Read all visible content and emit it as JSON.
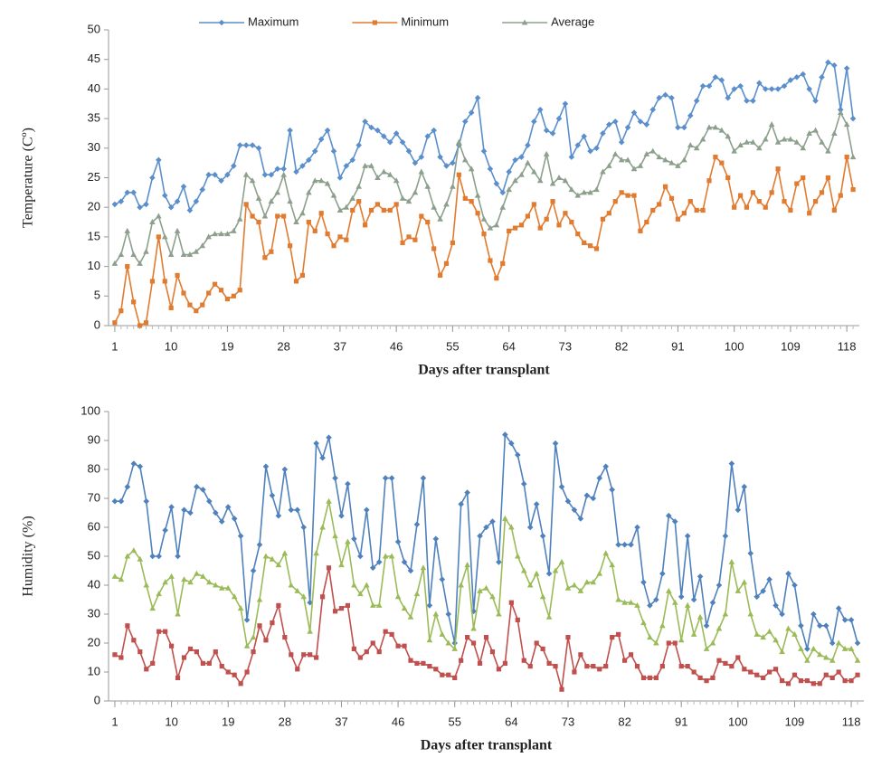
{
  "chart_data": [
    {
      "type": "line",
      "ylabel": "Temperature (Cº)",
      "xlabel": "Days after transplant",
      "legend": "top",
      "xlim": [
        0,
        120
      ],
      "xticks": [
        1,
        10,
        19,
        28,
        37,
        46,
        55,
        64,
        73,
        82,
        91,
        100,
        109,
        118
      ],
      "ylim": [
        0,
        50
      ],
      "yticks": [
        0,
        5,
        10,
        15,
        20,
        25,
        30,
        35,
        40,
        45,
        50
      ],
      "x": [
        1,
        2,
        3,
        4,
        5,
        6,
        7,
        8,
        9,
        10,
        11,
        12,
        13,
        14,
        15,
        16,
        17,
        18,
        19,
        20,
        21,
        22,
        23,
        24,
        25,
        26,
        27,
        28,
        29,
        30,
        31,
        32,
        33,
        34,
        35,
        36,
        37,
        38,
        39,
        40,
        41,
        42,
        43,
        44,
        45,
        46,
        47,
        48,
        49,
        50,
        51,
        52,
        53,
        54,
        55,
        56,
        57,
        58,
        59,
        60,
        61,
        62,
        63,
        64,
        65,
        66,
        67,
        68,
        69,
        70,
        71,
        72,
        73,
        74,
        75,
        76,
        77,
        78,
        79,
        80,
        81,
        82,
        83,
        84,
        85,
        86,
        87,
        88,
        89,
        90,
        91,
        92,
        93,
        94,
        95,
        96,
        97,
        98,
        99,
        100,
        101,
        102,
        103,
        104,
        105,
        106,
        107,
        108,
        109,
        110,
        111,
        112,
        113,
        114,
        115,
        116,
        117,
        118,
        119
      ],
      "series": [
        {
          "name": "Maximum",
          "color": "#5b8fcc",
          "marker": "diamond",
          "values": [
            20.5,
            21,
            22.5,
            22.5,
            20,
            20.5,
            25,
            28,
            22,
            20,
            21,
            23.5,
            19.5,
            21,
            23,
            25.5,
            25.5,
            24.5,
            25.5,
            27,
            30.5,
            30.5,
            30.5,
            30,
            25.5,
            25.5,
            26.5,
            26.5,
            33,
            26,
            27,
            28,
            29.5,
            31.5,
            33,
            29.5,
            25,
            27,
            28,
            30.5,
            34.5,
            33.5,
            33,
            32,
            31,
            32.5,
            31,
            29.5,
            27.5,
            28.5,
            32,
            33,
            28.5,
            27,
            27.5,
            30.5,
            34.5,
            36,
            38.5,
            29.5,
            26.5,
            24,
            22.5,
            26,
            28,
            28.5,
            30.5,
            34.5,
            36.5,
            33,
            32.5,
            35,
            37.5,
            28.5,
            30.5,
            32,
            29.5,
            30,
            32.5,
            34,
            34.5,
            31,
            33.5,
            36,
            34.5,
            34,
            36.5,
            38.5,
            39,
            38.5,
            33.5,
            33.5,
            35.5,
            38,
            40.5,
            40.5,
            42,
            41.5,
            38.5,
            40,
            40.5,
            38,
            38,
            41,
            40,
            40,
            40,
            40.5,
            41.5,
            42,
            42.5,
            40,
            38,
            42,
            44.5,
            44,
            36.5,
            43.5,
            35
          ]
        },
        {
          "name": "Minimum",
          "color": "#e07b30",
          "marker": "square",
          "values": [
            0.5,
            2.5,
            10,
            4,
            0,
            0.5,
            7.5,
            15,
            7.5,
            3,
            8.5,
            5.5,
            3.5,
            2.5,
            3.5,
            5.5,
            7,
            6,
            4.5,
            5,
            6,
            20.5,
            18.5,
            17.5,
            11.5,
            12.5,
            18.5,
            18.5,
            13.5,
            7.5,
            8.5,
            17.5,
            16,
            19,
            15.5,
            13.5,
            15,
            14.5,
            19.5,
            21,
            17,
            19.5,
            20.5,
            19.5,
            19.5,
            20.5,
            14,
            15,
            14.5,
            18.5,
            17.5,
            13,
            8.5,
            10.5,
            14,
            25.5,
            21.5,
            21,
            19,
            15.5,
            11,
            8,
            10.5,
            16,
            16.5,
            17,
            18.5,
            20.5,
            16.5,
            18,
            21,
            17,
            19,
            17.5,
            15.5,
            14,
            13.5,
            13,
            18,
            19,
            21,
            22.5,
            22,
            22,
            16,
            17.5,
            19.5,
            20.5,
            23.5,
            21.5,
            18,
            19,
            21,
            19.5,
            19.5,
            24.5,
            28.5,
            27.5,
            25,
            20,
            22,
            20,
            22.5,
            21,
            20,
            22.5,
            26.5,
            21,
            19.5,
            24,
            25,
            19,
            21,
            22.5,
            25,
            19.5,
            22,
            28.5,
            23
          ]
        },
        {
          "name": "Average",
          "color": "#8da08d",
          "marker": "triangle",
          "values": [
            10.5,
            12,
            16,
            12,
            10.5,
            12.5,
            17.5,
            18.5,
            15,
            12,
            16,
            12,
            12,
            12.5,
            13.5,
            15,
            15.5,
            15.5,
            15.5,
            16,
            18,
            25.5,
            24.5,
            21.5,
            18.5,
            21,
            22.5,
            25.5,
            21,
            17.5,
            19,
            22.5,
            24.5,
            24.5,
            24,
            22,
            19.5,
            20,
            21.5,
            23.5,
            27,
            27,
            25,
            26,
            25.5,
            24.5,
            21.5,
            21,
            22.5,
            26,
            23.5,
            20,
            18,
            20.5,
            23.5,
            31,
            28,
            26.5,
            22,
            18,
            16.5,
            17,
            20,
            23,
            24.5,
            25.5,
            27.5,
            26,
            24.5,
            29,
            24,
            25,
            24.5,
            23,
            22,
            22.5,
            22.5,
            23,
            26,
            27,
            29,
            28,
            28,
            26.5,
            27,
            29,
            29.5,
            28.5,
            28,
            27.5,
            27,
            28,
            30.5,
            30,
            31.5,
            33.5,
            33.5,
            33,
            32,
            29.5,
            30.5,
            31,
            31,
            30,
            31.5,
            34,
            31,
            31.5,
            31.5,
            31,
            30,
            32.5,
            33,
            31,
            29.5,
            32.5,
            36,
            34,
            28.5
          ]
        }
      ]
    },
    {
      "type": "line",
      "ylabel": "Humidity (%)",
      "xlabel": "Days after transplant",
      "xlim": [
        0,
        120
      ],
      "xticks": [
        1,
        10,
        19,
        28,
        37,
        46,
        55,
        64,
        73,
        82,
        91,
        100,
        109,
        118
      ],
      "ylim": [
        0,
        100
      ],
      "yticks": [
        0,
        10,
        20,
        30,
        40,
        50,
        60,
        70,
        80,
        90,
        100
      ],
      "x": [
        1,
        2,
        3,
        4,
        5,
        6,
        7,
        8,
        9,
        10,
        11,
        12,
        13,
        14,
        15,
        16,
        17,
        18,
        19,
        20,
        21,
        22,
        23,
        24,
        25,
        26,
        27,
        28,
        29,
        30,
        31,
        32,
        33,
        34,
        35,
        36,
        37,
        38,
        39,
        40,
        41,
        42,
        43,
        44,
        45,
        46,
        47,
        48,
        49,
        50,
        51,
        52,
        53,
        54,
        55,
        56,
        57,
        58,
        59,
        60,
        61,
        62,
        63,
        64,
        65,
        66,
        67,
        68,
        69,
        70,
        71,
        72,
        73,
        74,
        75,
        76,
        77,
        78,
        79,
        80,
        81,
        82,
        83,
        84,
        85,
        86,
        87,
        88,
        89,
        90,
        91,
        92,
        93,
        94,
        95,
        96,
        97,
        98,
        99,
        100,
        101,
        102,
        103,
        104,
        105,
        106,
        107,
        108,
        109,
        110,
        111,
        112,
        113,
        114,
        115,
        116,
        117,
        118,
        119
      ],
      "series": [
        {
          "color": "#4f81bd",
          "marker": "diamond",
          "values": [
            69,
            69,
            74,
            82,
            81,
            69,
            50,
            50,
            59,
            67,
            50,
            66,
            65,
            74,
            73,
            69,
            65,
            62,
            67,
            63,
            57,
            28,
            45,
            54,
            81,
            71,
            64,
            80,
            66,
            66,
            60,
            34,
            89,
            84,
            91,
            77,
            64,
            75,
            56,
            50,
            66,
            46,
            48,
            77,
            77,
            55,
            48,
            45,
            61,
            77,
            33,
            56,
            42,
            30,
            20,
            68,
            72,
            31,
            57,
            60,
            62,
            48,
            92,
            89,
            85,
            75,
            60,
            68,
            57,
            44,
            89,
            74,
            69,
            66,
            63,
            71,
            70,
            77,
            81,
            73,
            54,
            54,
            54,
            60,
            41,
            33,
            35,
            44,
            64,
            62,
            36,
            57,
            35,
            43,
            26,
            34,
            40,
            57,
            82,
            66,
            74,
            51,
            36,
            38,
            42,
            33,
            30,
            44,
            40,
            26,
            18,
            30,
            26,
            26,
            20,
            32,
            28,
            28,
            20
          ]
        },
        {
          "color": "#9bbb59",
          "marker": "triangle",
          "values": [
            43,
            42,
            50,
            52,
            49,
            40,
            32,
            37,
            41,
            43,
            30,
            42,
            41,
            44,
            43,
            41,
            40,
            39,
            39,
            36,
            32,
            19,
            22,
            35,
            50,
            49,
            47,
            51,
            40,
            38,
            36,
            24,
            51,
            60,
            69,
            57,
            47,
            55,
            40,
            37,
            40,
            33,
            33,
            50,
            50,
            36,
            32,
            29,
            37,
            46,
            21,
            30,
            23,
            20,
            18,
            40,
            47,
            25,
            38,
            39,
            36,
            30,
            63,
            60,
            50,
            45,
            40,
            44,
            36,
            29,
            45,
            48,
            39,
            40,
            38,
            41,
            41,
            44,
            51,
            47,
            35,
            34,
            34,
            33,
            27,
            22,
            20,
            26,
            38,
            34,
            21,
            33,
            23,
            29,
            18,
            20,
            25,
            30,
            48,
            38,
            41,
            30,
            23,
            22,
            24,
            21,
            17,
            25,
            23,
            18,
            14,
            18,
            16,
            15,
            14,
            20,
            18,
            18,
            14
          ]
        },
        {
          "color": "#c0504d",
          "marker": "square",
          "values": [
            16,
            15,
            26,
            21,
            17,
            11,
            13,
            24,
            24,
            19,
            8,
            15,
            18,
            17,
            13,
            13,
            17,
            12,
            10,
            9,
            6,
            10,
            17,
            26,
            21,
            27,
            33,
            22,
            16,
            11,
            16,
            16,
            15,
            36,
            46,
            31,
            32,
            33,
            18,
            15,
            17,
            20,
            17,
            24,
            23,
            19,
            19,
            14,
            13,
            13,
            12,
            11,
            9,
            9,
            8,
            14,
            22,
            20,
            13,
            22,
            17,
            11,
            13,
            34,
            28,
            14,
            12,
            20,
            18,
            13,
            12,
            4,
            22,
            10,
            16,
            12,
            12,
            11,
            12,
            22,
            23,
            14,
            16,
            12,
            8,
            8,
            8,
            12,
            20,
            20,
            12,
            12,
            10,
            8,
            7,
            8,
            14,
            13,
            12,
            15,
            11,
            10,
            9,
            8,
            10,
            11,
            7,
            6,
            9,
            7,
            7,
            6,
            6,
            9,
            8,
            10,
            7,
            7,
            9
          ]
        }
      ]
    }
  ]
}
